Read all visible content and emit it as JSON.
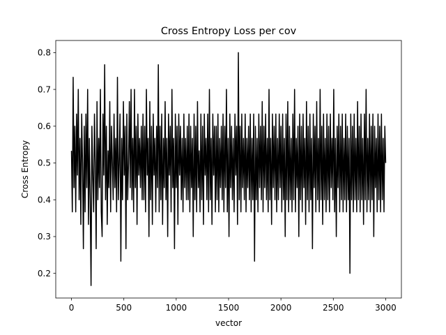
{
  "chart_data": {
    "type": "line",
    "title": "Cross Entropy Loss per cov",
    "xlabel": "vector",
    "ylabel": "Cross Entropy",
    "xlim": [
      -150,
      3150
    ],
    "ylim": [
      0.133,
      0.833
    ],
    "xticks": [
      0,
      500,
      1000,
      1500,
      2000,
      2500,
      3000
    ],
    "xtick_labels": [
      "0",
      "500",
      "1000",
      "1500",
      "2000",
      "2500",
      "3000"
    ],
    "yticks": [
      0.2,
      0.3,
      0.4,
      0.5,
      0.6,
      0.7,
      0.8
    ],
    "ytick_labels": [
      "0.2",
      "0.3",
      "0.4",
      "0.5",
      "0.6",
      "0.7",
      "0.8"
    ],
    "grid": false,
    "series": [
      {
        "color": "#000000",
        "x_start": 0,
        "x_end": 3000,
        "point_count": 3001,
        "values": [
          0.533,
          0.367,
          0.733,
          0.433,
          0.6,
          0.367,
          0.633,
          0.467,
          0.7,
          0.4,
          0.567,
          0.333,
          0.633,
          0.5,
          0.267,
          0.6,
          0.367,
          0.633,
          0.433,
          0.7,
          0.333,
          0.567,
          0.4,
          0.167,
          0.6,
          0.467,
          0.367,
          0.633,
          0.5,
          0.267,
          0.667,
          0.4,
          0.567,
          0.433,
          0.7,
          0.367,
          0.3,
          0.633,
          0.467,
          0.767,
          0.4,
          0.6,
          0.333,
          0.533,
          0.433,
          0.667,
          0.367,
          0.6,
          0.5,
          0.4,
          0.633,
          0.433,
          0.567,
          0.367,
          0.733,
          0.4,
          0.5,
          0.633,
          0.233,
          0.567,
          0.4,
          0.667,
          0.467,
          0.6,
          0.267,
          0.633,
          0.4,
          0.5,
          0.667,
          0.433,
          0.7,
          0.4,
          0.567,
          0.367,
          0.7,
          0.433,
          0.6,
          0.333,
          0.633,
          0.467,
          0.567,
          0.433,
          0.6,
          0.4,
          0.633,
          0.4,
          0.6,
          0.367,
          0.7,
          0.467,
          0.567,
          0.3,
          0.667,
          0.4,
          0.6,
          0.333,
          0.633,
          0.467,
          0.567,
          0.367,
          0.6,
          0.433,
          0.767,
          0.367,
          0.6,
          0.4,
          0.633,
          0.333,
          0.567,
          0.433,
          0.667,
          0.4,
          0.567,
          0.3,
          0.633,
          0.467,
          0.6,
          0.367,
          0.7,
          0.433,
          0.567,
          0.267,
          0.633,
          0.433,
          0.6,
          0.333,
          0.633,
          0.467,
          0.6,
          0.4,
          0.567,
          0.367,
          0.633,
          0.433,
          0.567,
          0.4,
          0.6,
          0.4,
          0.633,
          0.367,
          0.6,
          0.433,
          0.567,
          0.3,
          0.633,
          0.4,
          0.6,
          0.367,
          0.667,
          0.433,
          0.533,
          0.367,
          0.633,
          0.4,
          0.6,
          0.333,
          0.633,
          0.467,
          0.567,
          0.4,
          0.633,
          0.367,
          0.7,
          0.4,
          0.567,
          0.333,
          0.633,
          0.467,
          0.6,
          0.367,
          0.6,
          0.4,
          0.633,
          0.367,
          0.567,
          0.433,
          0.6,
          0.4,
          0.633,
          0.367,
          0.6,
          0.433,
          0.7,
          0.367,
          0.567,
          0.3,
          0.633,
          0.433,
          0.6,
          0.4,
          0.567,
          0.367,
          0.633,
          0.467,
          0.6,
          0.333,
          0.8,
          0.4,
          0.6,
          0.367,
          0.633,
          0.433,
          0.567,
          0.4,
          0.633,
          0.367,
          0.567,
          0.433,
          0.6,
          0.4,
          0.633,
          0.367,
          0.567,
          0.4,
          0.633,
          0.233,
          0.6,
          0.4,
          0.567,
          0.367,
          0.633,
          0.433,
          0.6,
          0.4,
          0.667,
          0.367,
          0.6,
          0.433,
          0.633,
          0.4,
          0.567,
          0.367,
          0.7,
          0.4,
          0.567,
          0.333,
          0.633,
          0.433,
          0.6,
          0.4,
          0.633,
          0.367,
          0.567,
          0.4,
          0.633,
          0.433,
          0.6,
          0.367,
          0.633,
          0.4,
          0.567,
          0.3,
          0.633,
          0.4,
          0.667,
          0.367,
          0.6,
          0.4,
          0.567,
          0.367,
          0.633,
          0.4,
          0.7,
          0.367,
          0.567,
          0.433,
          0.6,
          0.3,
          0.633,
          0.4,
          0.6,
          0.367,
          0.633,
          0.433,
          0.567,
          0.333,
          0.667,
          0.4,
          0.6,
          0.367,
          0.633,
          0.4,
          0.567,
          0.267,
          0.633,
          0.433,
          0.6,
          0.367,
          0.667,
          0.4,
          0.567,
          0.367,
          0.7,
          0.4,
          0.6,
          0.333,
          0.633,
          0.4,
          0.567,
          0.367,
          0.633,
          0.4,
          0.6,
          0.367,
          0.633,
          0.433,
          0.567,
          0.4,
          0.7,
          0.367,
          0.567,
          0.3,
          0.6,
          0.433,
          0.633,
          0.367,
          0.6,
          0.4,
          0.633,
          0.367,
          0.567,
          0.4,
          0.633,
          0.367,
          0.6,
          0.4,
          0.567,
          0.2,
          0.633,
          0.4,
          0.6,
          0.367,
          0.633,
          0.4,
          0.567,
          0.367,
          0.667,
          0.4,
          0.6,
          0.367,
          0.633,
          0.4,
          0.567,
          0.333,
          0.633,
          0.4,
          0.7,
          0.367,
          0.567,
          0.4,
          0.633,
          0.367,
          0.6,
          0.4,
          0.633,
          0.3,
          0.6,
          0.433,
          0.567,
          0.367,
          0.633,
          0.4,
          0.6,
          0.367,
          0.633,
          0.4,
          0.567,
          0.367,
          0.6,
          0.5
        ]
      }
    ]
  }
}
